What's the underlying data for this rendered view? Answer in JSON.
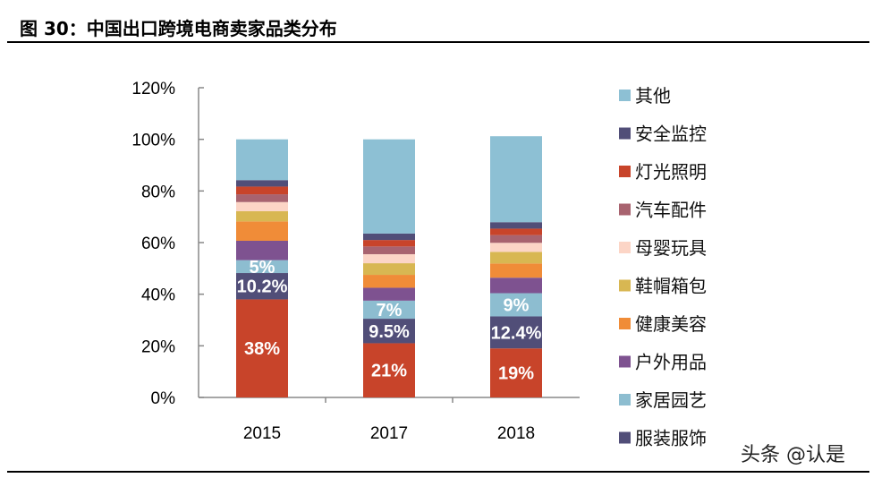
{
  "title": "图 30：中国出口跨境电商卖家品类分布",
  "watermark": "头条 @认是",
  "chart_data": {
    "type": "bar",
    "stacked": true,
    "categories": [
      "2015",
      "2017",
      "2018"
    ],
    "ylim": [
      0,
      120
    ],
    "yticks": [
      "0%",
      "20%",
      "40%",
      "60%",
      "80%",
      "100%",
      "120%"
    ],
    "ytick_values": [
      0,
      20,
      40,
      60,
      80,
      100,
      120
    ],
    "legend_position": "right",
    "grid": false,
    "series": [
      {
        "color": "#C8442A",
        "values": [
          38,
          21,
          19
        ],
        "labels": [
          "38%",
          "21%",
          "19%"
        ]
      },
      {
        "name": "服装服饰",
        "color": "#514E78",
        "values": [
          10.2,
          9.5,
          12.4
        ],
        "labels": [
          "10.2%",
          "9.5%",
          "12.4%"
        ]
      },
      {
        "name": "家居园艺",
        "color": "#8DBDD0",
        "values": [
          5,
          7,
          9
        ],
        "labels": [
          "5%",
          "7%",
          "9%"
        ]
      },
      {
        "name": "户外用品",
        "color": "#7E5290",
        "values": [
          7.5,
          5,
          6
        ]
      },
      {
        "name": "健康美容",
        "color": "#F08C38",
        "values": [
          7.5,
          5,
          5.5
        ]
      },
      {
        "name": "鞋帽箱包",
        "color": "#D8B752",
        "values": [
          4,
          4.5,
          4.5
        ]
      },
      {
        "name": "母婴玩具",
        "color": "#FCD5C6",
        "values": [
          3.5,
          3.5,
          3.5
        ]
      },
      {
        "name": "汽车配件",
        "color": "#A8636F",
        "values": [
          3,
          3,
          3
        ]
      },
      {
        "name": "灯光照明",
        "color": "#C8442A",
        "values": [
          3,
          2.5,
          2.5
        ]
      },
      {
        "name": "安全监控",
        "color": "#514E78",
        "values": [
          2.5,
          2.5,
          2.5
        ]
      },
      {
        "name": "其他",
        "color": "#8DC0D4",
        "values": [
          15.8,
          36.5,
          33.3
        ]
      }
    ]
  }
}
